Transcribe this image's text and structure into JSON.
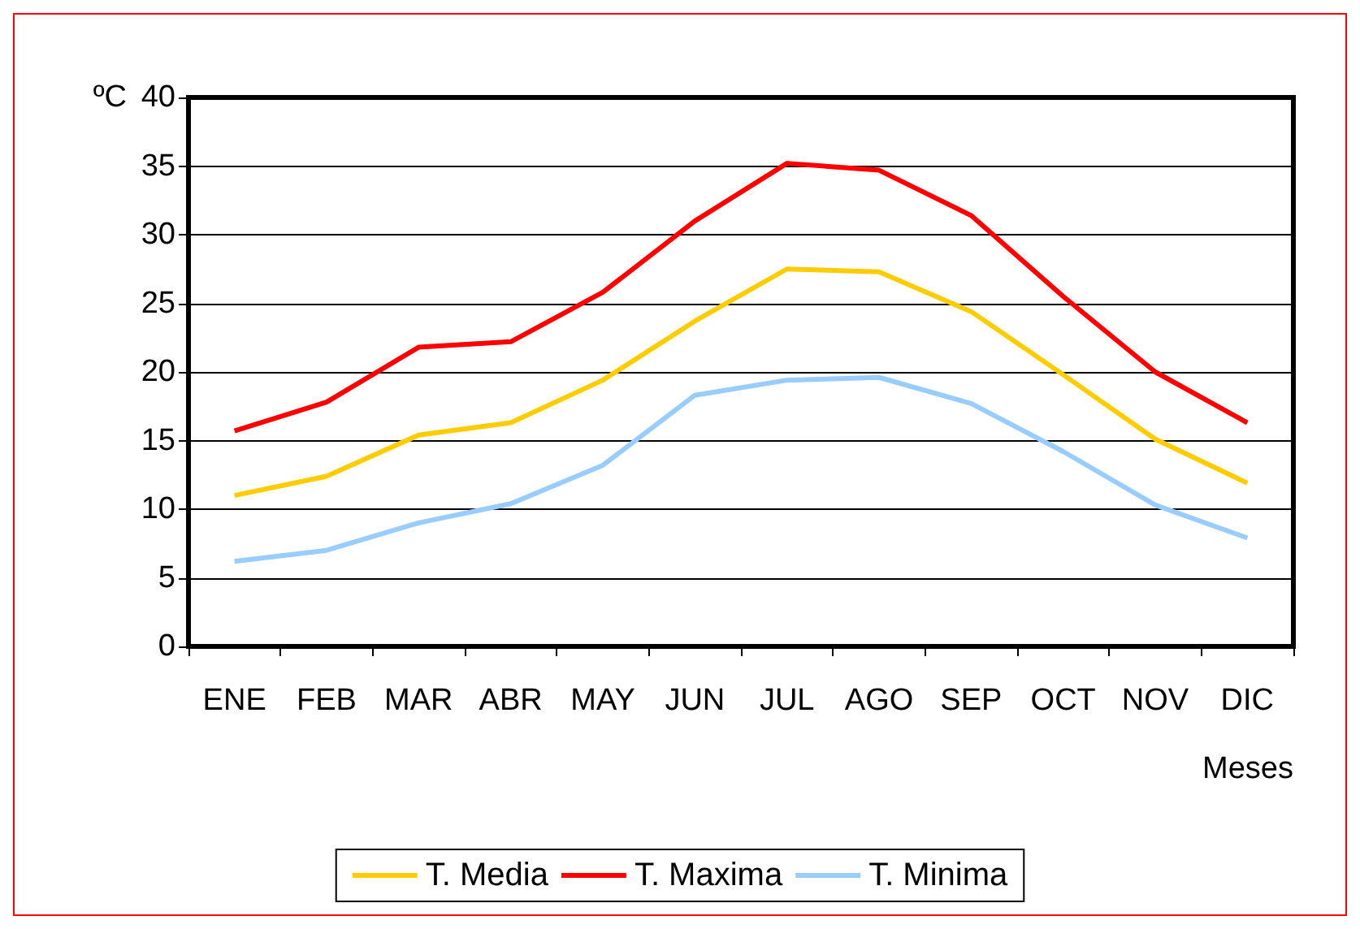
{
  "chart_data": {
    "type": "line",
    "ylabel": "ºC",
    "xlabel": "Meses",
    "categories": [
      "ENE",
      "FEB",
      "MAR",
      "ABR",
      "MAY",
      "JUN",
      "JUL",
      "AGO",
      "SEP",
      "OCT",
      "NOV",
      "DIC"
    ],
    "series": [
      {
        "name": "T. Media",
        "color": "#ffcc00",
        "values": [
          11.0,
          12.4,
          15.4,
          16.3,
          19.4,
          23.7,
          27.5,
          27.3,
          24.4,
          19.8,
          15.1,
          11.9
        ]
      },
      {
        "name": "T. Maxima",
        "color": "#ff0000",
        "values": [
          15.7,
          17.8,
          21.8,
          22.2,
          25.8,
          31.0,
          35.2,
          34.7,
          31.4,
          25.5,
          20.0,
          16.3
        ]
      },
      {
        "name": "T. Minima",
        "color": "#99ccff",
        "values": [
          6.2,
          7.0,
          9.0,
          10.4,
          13.2,
          18.3,
          19.4,
          19.6,
          17.7,
          14.2,
          10.3,
          7.9
        ]
      }
    ],
    "ylim": [
      0,
      40
    ],
    "yticks": [
      0,
      5,
      10,
      15,
      20,
      25,
      30,
      35,
      40
    ],
    "grid": "y",
    "legend": "bottom",
    "marker": "none",
    "line_style": "solid"
  }
}
